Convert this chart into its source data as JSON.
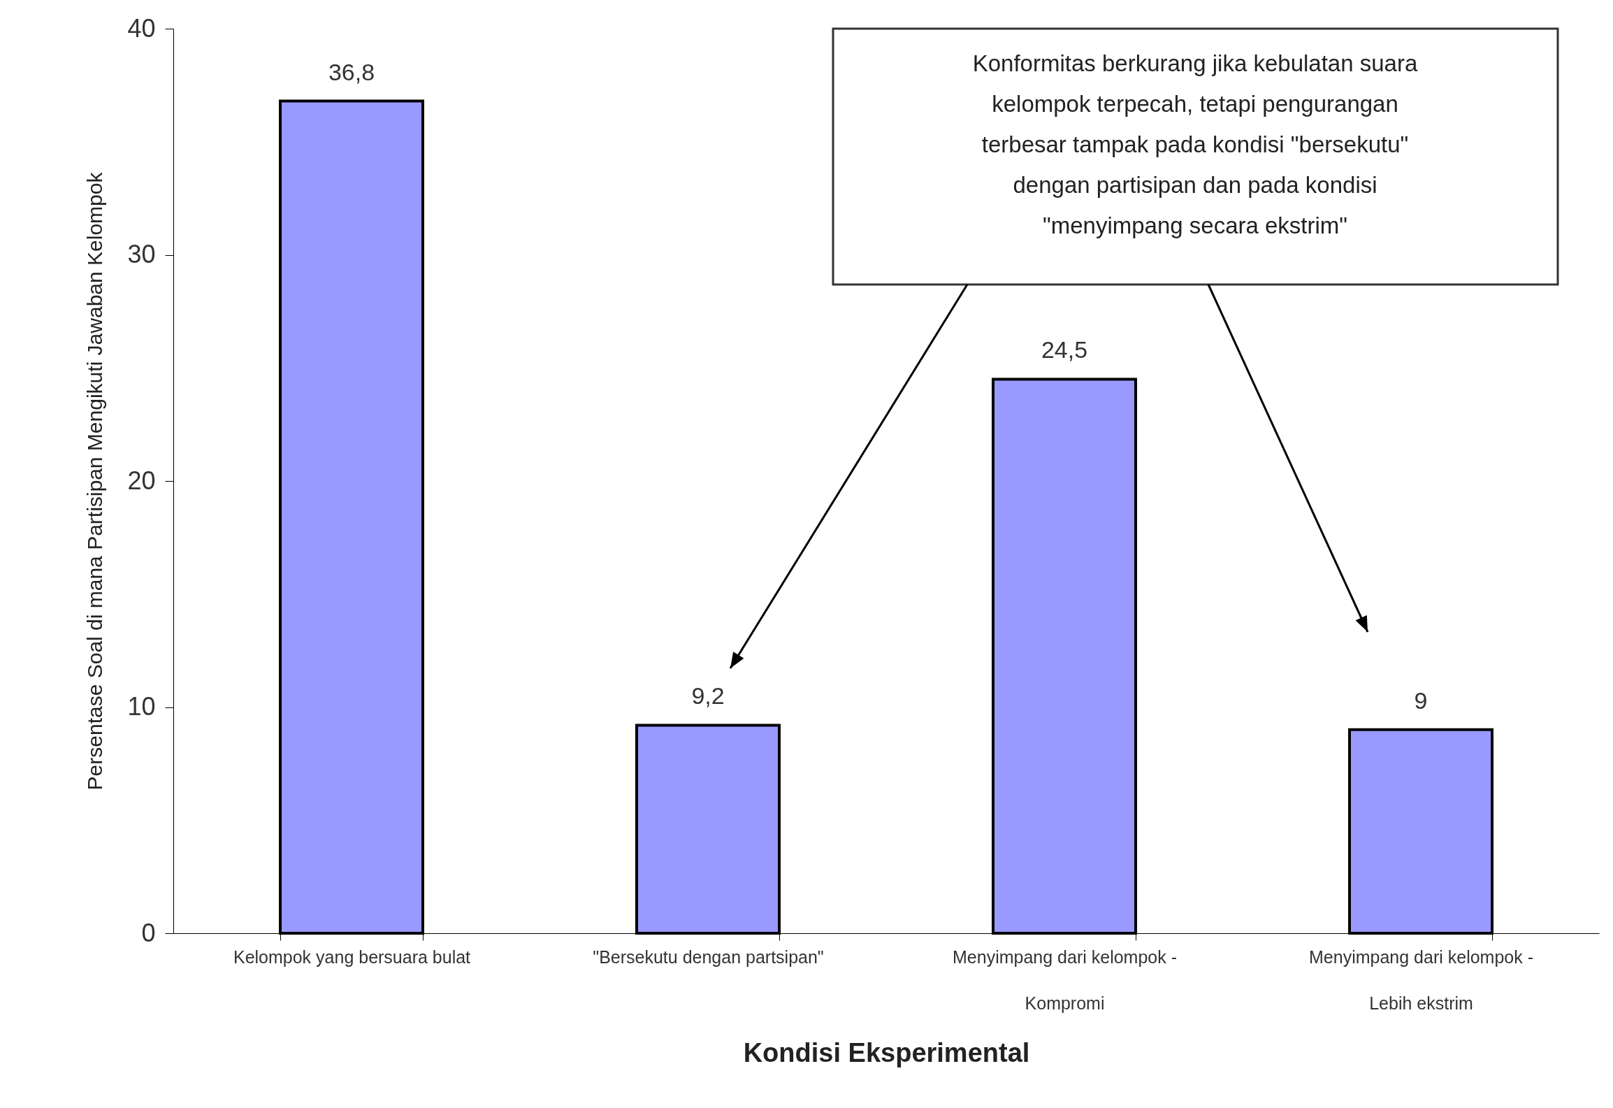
{
  "chart_data": {
    "type": "bar",
    "xlabel": "Kondisi Eksperimental",
    "ylabel": "Persentase Soal di mana Partisipan Mengikuti Jawaban Kelompok",
    "categories": [
      "Kelompok yang bersuara bulat",
      "\"Bersekutu dengan partsipan\"",
      "Menyimpang dari kelompok - Kompromi",
      "Menyimpang dari kelompok - Lebih ekstrim"
    ],
    "values": [
      36.8,
      9.2,
      24.5,
      9
    ],
    "value_labels": [
      "36,8",
      "9,2",
      "24,5",
      "9"
    ],
    "color": "#9999ff",
    "ylim": [
      0,
      40
    ],
    "yticks": [
      0,
      10,
      20,
      30,
      40
    ],
    "grid": false,
    "annotations": [
      "Konformitas berkurang jika kebulatan suara kelompok terpecah, tetapi pengurangan terbesar tampak pada kondisi \"bersekutu\" dengan partisipan dan pada kondisi \"menyimpang secara ekstrim\""
    ]
  }
}
